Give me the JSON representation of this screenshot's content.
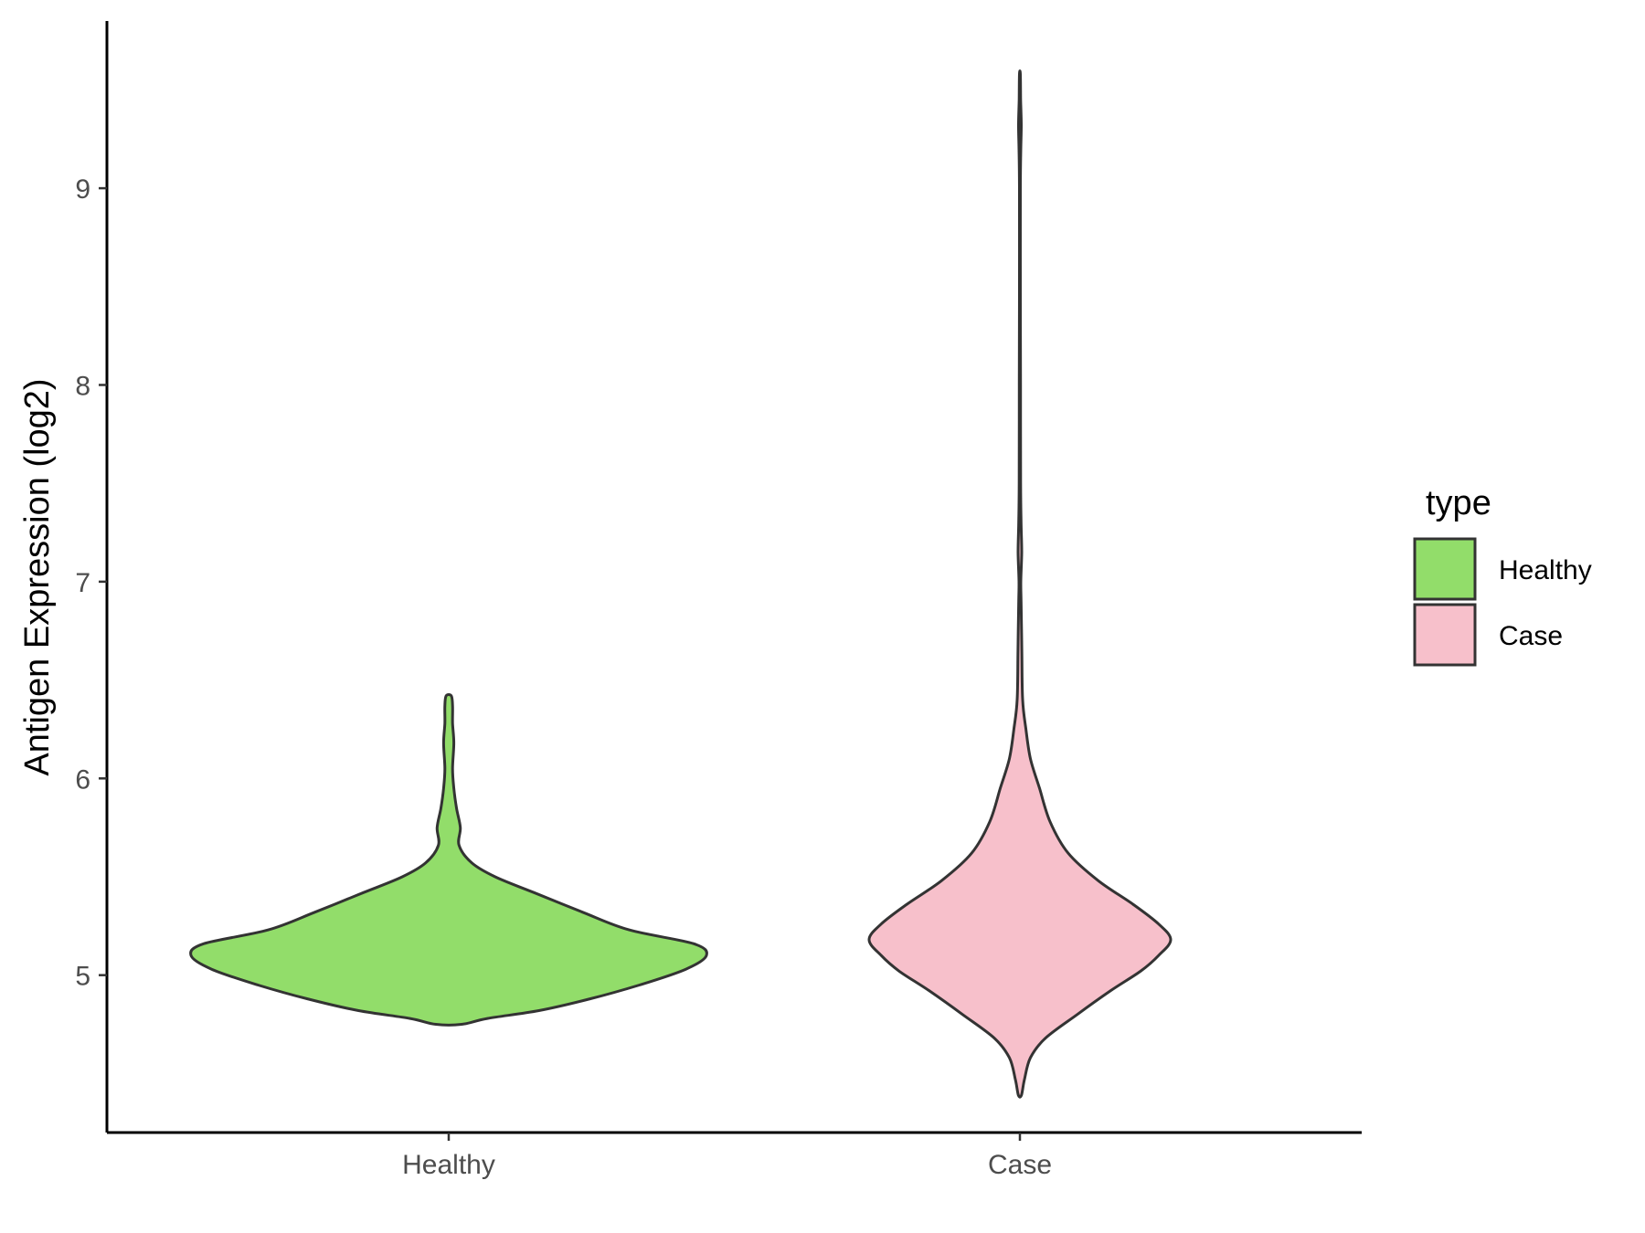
{
  "chart_data": {
    "type": "violin",
    "title": "",
    "xlabel": "",
    "ylabel": "Antigen Expression (log2)",
    "ylim": [
      4.2,
      9.85
    ],
    "yticks": [
      5,
      6,
      7,
      8,
      9
    ],
    "categories": [
      "Healthy",
      "Case"
    ],
    "grid": false,
    "legend": {
      "title": "type",
      "position": "right",
      "entries": [
        {
          "label": "Healthy",
          "color": "#92dd6a"
        },
        {
          "label": "Case",
          "color": "#f7c0cb"
        }
      ]
    },
    "series": [
      {
        "category": "Healthy",
        "color": "#92dd6a",
        "density_profile": [
          [
            4.75,
            0.05
          ],
          [
            4.78,
            0.15
          ],
          [
            4.82,
            0.35
          ],
          [
            4.88,
            0.55
          ],
          [
            4.95,
            0.74
          ],
          [
            5.03,
            0.92
          ],
          [
            5.1,
            1.0
          ],
          [
            5.16,
            0.95
          ],
          [
            5.23,
            0.7
          ],
          [
            5.32,
            0.52
          ],
          [
            5.42,
            0.33
          ],
          [
            5.5,
            0.18
          ],
          [
            5.57,
            0.09
          ],
          [
            5.66,
            0.04
          ],
          [
            5.75,
            0.045
          ],
          [
            5.85,
            0.03
          ],
          [
            5.95,
            0.02
          ],
          [
            6.05,
            0.015
          ],
          [
            6.18,
            0.02
          ],
          [
            6.28,
            0.015
          ],
          [
            6.37,
            0.015
          ],
          [
            6.42,
            0.01
          ]
        ]
      },
      {
        "category": "Case",
        "color": "#f7c0cb",
        "density_profile": [
          [
            4.39,
            0.01
          ],
          [
            4.47,
            0.03
          ],
          [
            4.58,
            0.07
          ],
          [
            4.68,
            0.17
          ],
          [
            4.8,
            0.38
          ],
          [
            4.92,
            0.6
          ],
          [
            5.02,
            0.8
          ],
          [
            5.1,
            0.92
          ],
          [
            5.18,
            1.0
          ],
          [
            5.26,
            0.92
          ],
          [
            5.36,
            0.75
          ],
          [
            5.48,
            0.52
          ],
          [
            5.62,
            0.32
          ],
          [
            5.78,
            0.2
          ],
          [
            5.95,
            0.13
          ],
          [
            6.1,
            0.07
          ],
          [
            6.25,
            0.04
          ],
          [
            6.4,
            0.018
          ],
          [
            6.65,
            0.013
          ],
          [
            6.9,
            0.008
          ],
          [
            7.0,
            0.006
          ],
          [
            7.15,
            0.012
          ],
          [
            7.3,
            0.008
          ],
          [
            7.5,
            0.005
          ],
          [
            8.0,
            0.004
          ],
          [
            8.5,
            0.003
          ],
          [
            9.0,
            0.003
          ],
          [
            9.2,
            0.006
          ],
          [
            9.32,
            0.009
          ],
          [
            9.45,
            0.005
          ],
          [
            9.58,
            0.003
          ]
        ]
      }
    ]
  }
}
